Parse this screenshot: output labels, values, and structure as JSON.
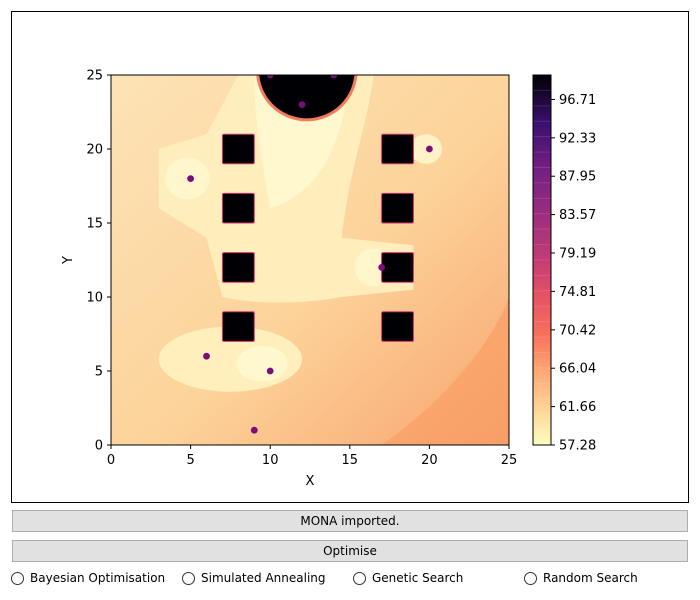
{
  "chart_data": {
    "type": "heatmap",
    "title": "",
    "xlabel": "X",
    "ylabel": "Y",
    "xlim": [
      0,
      25
    ],
    "ylim": [
      0,
      25
    ],
    "x_ticks": [
      "0",
      "5",
      "10",
      "15",
      "20",
      "25"
    ],
    "y_ticks": [
      "0",
      "5",
      "10",
      "15",
      "20",
      "25"
    ],
    "colorbar": {
      "colormap": "magma_r",
      "min": 57.28,
      "max": 99.5,
      "tick_labels": [
        "57.28",
        "61.66",
        "66.04",
        "70.42",
        "74.81",
        "79.19",
        "83.57",
        "87.95",
        "92.33",
        "96.71"
      ],
      "tick_values": [
        57.28,
        61.66,
        66.04,
        70.42,
        74.81,
        79.19,
        83.57,
        87.95,
        92.33,
        96.71
      ]
    },
    "obstacles": [
      {
        "x": 8,
        "y": 20
      },
      {
        "x": 8,
        "y": 16
      },
      {
        "x": 8,
        "y": 12
      },
      {
        "x": 8,
        "y": 8
      },
      {
        "x": 18,
        "y": 20
      },
      {
        "x": 18,
        "y": 16
      },
      {
        "x": 18,
        "y": 12
      },
      {
        "x": 18,
        "y": 8
      }
    ],
    "hot_zone": {
      "cx": 12.3,
      "cy": 25.3,
      "r": 3.0
    },
    "points": [
      {
        "x": 10,
        "y": 25
      },
      {
        "x": 14,
        "y": 25
      },
      {
        "x": 12,
        "y": 23
      },
      {
        "x": 5,
        "y": 18
      },
      {
        "x": 20,
        "y": 20
      },
      {
        "x": 17,
        "y": 12
      },
      {
        "x": 6,
        "y": 6
      },
      {
        "x": 10,
        "y": 5
      },
      {
        "x": 9,
        "y": 1
      }
    ]
  },
  "status": {
    "message": "MONA imported."
  },
  "optimise_button": {
    "label": "Optimise"
  },
  "methods": [
    {
      "label": "Bayesian Optimisation",
      "selected": false
    },
    {
      "label": "Simulated Annealing",
      "selected": false
    },
    {
      "label": "Genetic Search",
      "selected": false
    },
    {
      "label": "Random Search",
      "selected": false
    }
  ]
}
